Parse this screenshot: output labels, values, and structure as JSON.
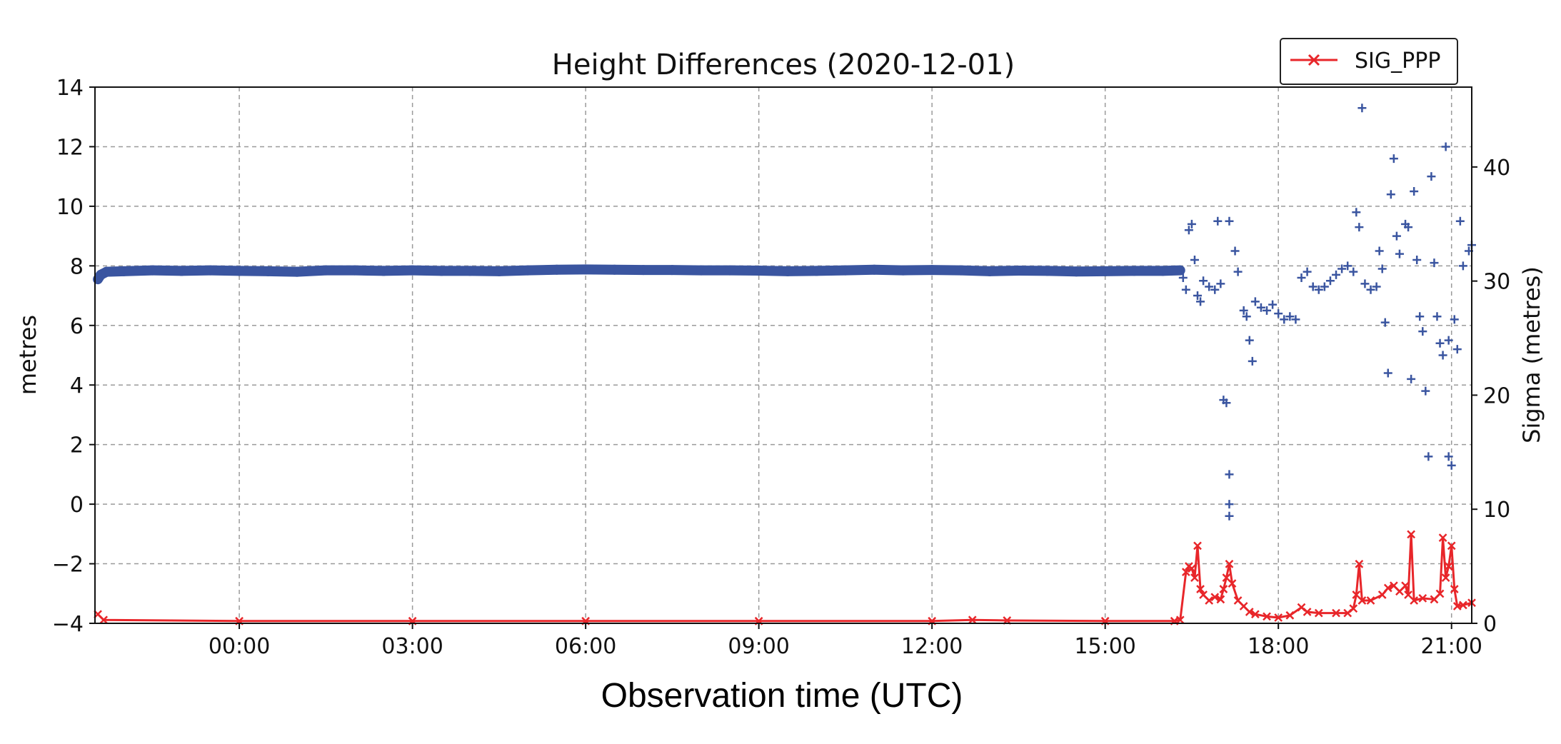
{
  "chart_data": {
    "type": "scatter",
    "title": "Height Differences (2020-12-01)",
    "xlabel": "Observation time (UTC)",
    "ylabel_left": "metres",
    "ylabel_right": "Sigma (metres)",
    "x_unit": "hours UTC relative to 2020-12-01 00:00",
    "xlim": [
      -2.5,
      21.35
    ],
    "ylim_left": [
      -4,
      14
    ],
    "ylim_right": [
      0,
      47
    ],
    "x_ticks": [
      {
        "value": 0,
        "label": "00:00"
      },
      {
        "value": 3,
        "label": "03:00"
      },
      {
        "value": 6,
        "label": "06:00"
      },
      {
        "value": 9,
        "label": "09:00"
      },
      {
        "value": 12,
        "label": "12:00"
      },
      {
        "value": 15,
        "label": "15:00"
      },
      {
        "value": 18,
        "label": "18:00"
      },
      {
        "value": 21,
        "label": "21:00"
      }
    ],
    "y_ticks_left": [
      {
        "value": -4,
        "label": "−4"
      },
      {
        "value": -2,
        "label": "−2"
      },
      {
        "value": 0,
        "label": "0"
      },
      {
        "value": 2,
        "label": "2"
      },
      {
        "value": 4,
        "label": "4"
      },
      {
        "value": 6,
        "label": "6"
      },
      {
        "value": 8,
        "label": "8"
      },
      {
        "value": 10,
        "label": "10"
      },
      {
        "value": 12,
        "label": "12"
      },
      {
        "value": 14,
        "label": "14"
      }
    ],
    "y_ticks_right": [
      {
        "value": 0,
        "label": "0"
      },
      {
        "value": 10,
        "label": "10"
      },
      {
        "value": 20,
        "label": "20"
      },
      {
        "value": 30,
        "label": "30"
      },
      {
        "value": 40,
        "label": "40"
      }
    ],
    "grid": true,
    "legend": {
      "position": "top-right",
      "entries": [
        {
          "label": "SIG_PPP",
          "color": "#e8262a",
          "marker": "x"
        }
      ]
    },
    "series": [
      {
        "axis": "left",
        "marker": "+",
        "color": "#3a55a0",
        "points": [
          [
            -2.45,
            7.55
          ],
          [
            -2.4,
            7.7
          ],
          [
            -2.3,
            7.8
          ],
          [
            -2.0,
            7.82
          ],
          [
            -1.5,
            7.85
          ],
          [
            -1.0,
            7.83
          ],
          [
            -0.5,
            7.85
          ],
          [
            0.0,
            7.83
          ],
          [
            0.5,
            7.82
          ],
          [
            1.0,
            7.8
          ],
          [
            1.5,
            7.85
          ],
          [
            2.0,
            7.85
          ],
          [
            2.5,
            7.83
          ],
          [
            3.0,
            7.85
          ],
          [
            3.5,
            7.83
          ],
          [
            4.0,
            7.83
          ],
          [
            4.5,
            7.82
          ],
          [
            5.0,
            7.85
          ],
          [
            5.5,
            7.87
          ],
          [
            6.0,
            7.88
          ],
          [
            6.5,
            7.87
          ],
          [
            7.0,
            7.86
          ],
          [
            7.5,
            7.86
          ],
          [
            8.0,
            7.85
          ],
          [
            8.5,
            7.85
          ],
          [
            9.0,
            7.84
          ],
          [
            9.5,
            7.82
          ],
          [
            10.0,
            7.83
          ],
          [
            10.5,
            7.85
          ],
          [
            11.0,
            7.87
          ],
          [
            11.5,
            7.85
          ],
          [
            12.0,
            7.86
          ],
          [
            12.5,
            7.85
          ],
          [
            13.0,
            7.82
          ],
          [
            13.5,
            7.84
          ],
          [
            14.0,
            7.83
          ],
          [
            14.5,
            7.81
          ],
          [
            15.0,
            7.82
          ],
          [
            15.5,
            7.83
          ],
          [
            16.0,
            7.83
          ],
          [
            16.3,
            7.85
          ],
          [
            16.35,
            7.6
          ],
          [
            16.4,
            7.2
          ],
          [
            16.45,
            9.2
          ],
          [
            16.5,
            9.4
          ],
          [
            16.55,
            8.2
          ],
          [
            16.6,
            7.0
          ],
          [
            16.65,
            6.8
          ],
          [
            16.7,
            7.5
          ],
          [
            16.8,
            7.3
          ],
          [
            16.9,
            7.2
          ],
          [
            17.0,
            7.4
          ],
          [
            16.95,
            9.5
          ],
          [
            17.15,
            9.5
          ],
          [
            17.25,
            8.5
          ],
          [
            17.05,
            3.5
          ],
          [
            17.1,
            3.4
          ],
          [
            17.15,
            1.0
          ],
          [
            17.15,
            0.0
          ],
          [
            17.15,
            -0.4
          ],
          [
            17.3,
            7.8
          ],
          [
            17.4,
            6.5
          ],
          [
            17.45,
            6.3
          ],
          [
            17.5,
            5.5
          ],
          [
            17.55,
            4.8
          ],
          [
            17.6,
            6.8
          ],
          [
            17.7,
            6.6
          ],
          [
            17.8,
            6.5
          ],
          [
            17.9,
            6.7
          ],
          [
            18.0,
            6.4
          ],
          [
            18.1,
            6.2
          ],
          [
            18.2,
            6.3
          ],
          [
            18.3,
            6.2
          ],
          [
            18.4,
            7.6
          ],
          [
            18.5,
            7.8
          ],
          [
            18.6,
            7.3
          ],
          [
            18.7,
            7.2
          ],
          [
            18.8,
            7.3
          ],
          [
            18.9,
            7.5
          ],
          [
            19.0,
            7.7
          ],
          [
            19.1,
            7.9
          ],
          [
            19.2,
            8.0
          ],
          [
            19.3,
            7.8
          ],
          [
            19.35,
            9.8
          ],
          [
            19.4,
            9.3
          ],
          [
            19.45,
            13.3
          ],
          [
            19.5,
            7.4
          ],
          [
            19.6,
            7.2
          ],
          [
            19.7,
            7.3
          ],
          [
            19.75,
            8.5
          ],
          [
            19.8,
            7.9
          ],
          [
            19.85,
            6.1
          ],
          [
            19.9,
            4.4
          ],
          [
            19.95,
            10.4
          ],
          [
            20.0,
            11.6
          ],
          [
            20.05,
            9.0
          ],
          [
            20.1,
            8.4
          ],
          [
            20.2,
            9.4
          ],
          [
            20.25,
            9.3
          ],
          [
            20.3,
            4.2
          ],
          [
            20.35,
            10.5
          ],
          [
            20.4,
            8.2
          ],
          [
            20.45,
            6.3
          ],
          [
            20.5,
            5.8
          ],
          [
            20.55,
            3.8
          ],
          [
            20.6,
            1.6
          ],
          [
            20.65,
            11.0
          ],
          [
            20.7,
            8.1
          ],
          [
            20.75,
            6.3
          ],
          [
            20.8,
            5.4
          ],
          [
            20.85,
            5.0
          ],
          [
            20.9,
            12.0
          ],
          [
            20.95,
            5.5
          ],
          [
            20.95,
            1.6
          ],
          [
            21.0,
            1.3
          ],
          [
            21.05,
            6.2
          ],
          [
            21.1,
            5.2
          ],
          [
            21.15,
            9.5
          ],
          [
            21.2,
            8.0
          ],
          [
            21.3,
            8.5
          ],
          [
            21.35,
            8.7
          ]
        ]
      },
      {
        "name": "SIG_PPP",
        "axis": "right",
        "marker": "x",
        "color": "#e8262a",
        "points": [
          [
            -2.45,
            0.8
          ],
          [
            -2.35,
            0.3
          ],
          [
            0.0,
            0.2
          ],
          [
            3.0,
            0.2
          ],
          [
            6.0,
            0.2
          ],
          [
            9.0,
            0.2
          ],
          [
            12.0,
            0.2
          ],
          [
            12.7,
            0.3
          ],
          [
            13.3,
            0.25
          ],
          [
            15.0,
            0.2
          ],
          [
            16.2,
            0.2
          ],
          [
            16.3,
            0.3
          ],
          [
            16.4,
            4.5
          ],
          [
            16.45,
            5.0
          ],
          [
            16.5,
            4.8
          ],
          [
            16.55,
            4.0
          ],
          [
            16.6,
            6.8
          ],
          [
            16.65,
            3.0
          ],
          [
            16.7,
            2.5
          ],
          [
            16.8,
            2.0
          ],
          [
            16.9,
            2.3
          ],
          [
            17.0,
            2.1
          ],
          [
            17.05,
            3.0
          ],
          [
            17.1,
            4.0
          ],
          [
            17.15,
            5.2
          ],
          [
            17.2,
            3.5
          ],
          [
            17.3,
            2.0
          ],
          [
            17.4,
            1.5
          ],
          [
            17.5,
            1.0
          ],
          [
            17.6,
            0.8
          ],
          [
            17.8,
            0.6
          ],
          [
            18.0,
            0.5
          ],
          [
            18.2,
            0.7
          ],
          [
            18.4,
            1.4
          ],
          [
            18.5,
            1.0
          ],
          [
            18.7,
            0.9
          ],
          [
            19.0,
            0.9
          ],
          [
            19.2,
            0.9
          ],
          [
            19.3,
            1.3
          ],
          [
            19.35,
            2.5
          ],
          [
            19.4,
            5.2
          ],
          [
            19.45,
            2.0
          ],
          [
            19.6,
            2.0
          ],
          [
            19.8,
            2.5
          ],
          [
            19.9,
            3.1
          ],
          [
            20.0,
            3.3
          ],
          [
            20.1,
            2.8
          ],
          [
            20.2,
            3.3
          ],
          [
            20.25,
            2.5
          ],
          [
            20.3,
            7.8
          ],
          [
            20.35,
            2.0
          ],
          [
            20.5,
            2.2
          ],
          [
            20.7,
            2.1
          ],
          [
            20.8,
            2.6
          ],
          [
            20.85,
            7.5
          ],
          [
            20.9,
            4.0
          ],
          [
            20.95,
            5.0
          ],
          [
            21.0,
            6.8
          ],
          [
            21.05,
            3.0
          ],
          [
            21.1,
            1.5
          ],
          [
            21.2,
            1.6
          ],
          [
            21.35,
            1.8
          ]
        ]
      }
    ]
  }
}
